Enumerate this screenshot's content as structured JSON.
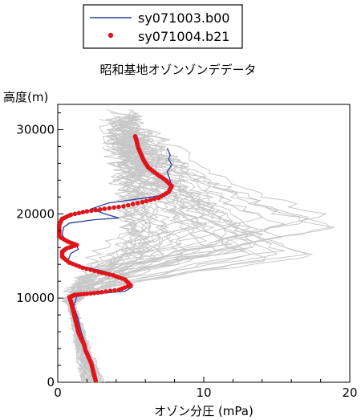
{
  "chart_data": {
    "type": "line",
    "title": "昭和基地オゾンゾンデデータ",
    "xlabel": "オゾン分圧 (mPa)",
    "ylabel": "高度(m)",
    "xlim": [
      0,
      20
    ],
    "ylim": [
      0,
      33000
    ],
    "xticks": [
      0,
      10,
      20
    ],
    "yticks": [
      0,
      10000,
      20000,
      30000
    ],
    "grid": false,
    "legend_position": "top-left",
    "series": [
      {
        "name": "sy071003.b00",
        "style": "line",
        "color": "#2b3f9e",
        "points": [
          [
            2.5,
            300
          ],
          [
            2.3,
            1500
          ],
          [
            2.1,
            3000
          ],
          [
            1.9,
            4500
          ],
          [
            1.6,
            6000
          ],
          [
            1.4,
            7500
          ],
          [
            1.1,
            9000
          ],
          [
            1.3,
            10200
          ],
          [
            2.5,
            10500
          ],
          [
            4.6,
            10800
          ],
          [
            5.1,
            11300
          ],
          [
            4.9,
            11900
          ],
          [
            4.2,
            12600
          ],
          [
            3.1,
            13200
          ],
          [
            1.6,
            13800
          ],
          [
            0.7,
            14500
          ],
          [
            0.9,
            15300
          ],
          [
            1.4,
            15800
          ],
          [
            1.3,
            16200
          ],
          [
            0.5,
            16800
          ],
          [
            0.3,
            17600
          ],
          [
            0.4,
            18400
          ],
          [
            0.8,
            18900
          ],
          [
            2.5,
            19300
          ],
          [
            4.2,
            19500
          ],
          [
            3.2,
            20000
          ],
          [
            2.3,
            20600
          ],
          [
            3.5,
            21300
          ],
          [
            5.2,
            21700
          ],
          [
            7.2,
            22200
          ],
          [
            7.8,
            23200
          ],
          [
            7.7,
            24000
          ],
          [
            7.5,
            25000
          ],
          [
            7.8,
            25800
          ],
          [
            7.6,
            26500
          ],
          [
            7.7,
            27000
          ],
          [
            7.5,
            27800
          ]
        ]
      },
      {
        "name": "sy071004.b21",
        "style": "markers",
        "color": "#e0141a",
        "points": [
          [
            2.6,
            200
          ],
          [
            2.5,
            800
          ],
          [
            2.4,
            1500
          ],
          [
            2.3,
            2200
          ],
          [
            2.1,
            3000
          ],
          [
            1.9,
            3800
          ],
          [
            1.8,
            4500
          ],
          [
            1.6,
            5200
          ],
          [
            1.4,
            6000
          ],
          [
            1.3,
            6800
          ],
          [
            1.2,
            7500
          ],
          [
            1.1,
            8200
          ],
          [
            1.0,
            8900
          ],
          [
            0.9,
            9600
          ],
          [
            0.8,
            10100
          ],
          [
            1.2,
            10400
          ],
          [
            2.0,
            10500
          ],
          [
            3.0,
            10700
          ],
          [
            4.2,
            11000
          ],
          [
            5.0,
            11500
          ],
          [
            4.6,
            12200
          ],
          [
            3.8,
            12700
          ],
          [
            2.8,
            13100
          ],
          [
            1.7,
            13600
          ],
          [
            0.8,
            14200
          ],
          [
            0.3,
            14900
          ],
          [
            0.3,
            15500
          ],
          [
            0.6,
            15900
          ],
          [
            1.3,
            16300
          ],
          [
            0.7,
            16700
          ],
          [
            0.1,
            17300
          ],
          [
            0.1,
            18000
          ],
          [
            0.1,
            18700
          ],
          [
            0.3,
            19400
          ],
          [
            0.9,
            19900
          ],
          [
            2.0,
            20300
          ],
          [
            3.2,
            20600
          ],
          [
            4.5,
            20900
          ],
          [
            5.8,
            21400
          ],
          [
            6.9,
            21900
          ],
          [
            7.6,
            22600
          ],
          [
            7.8,
            23300
          ],
          [
            7.4,
            24000
          ],
          [
            6.8,
            24700
          ],
          [
            6.2,
            25500
          ],
          [
            5.9,
            26300
          ],
          [
            5.7,
            27100
          ],
          [
            5.5,
            27900
          ],
          [
            5.4,
            28700
          ],
          [
            5.3,
            29200
          ]
        ]
      }
    ],
    "background_profiles": {
      "name": "",
      "color": "#c8c8c8",
      "count": 40,
      "note_peak_range_mPa": [
        4,
        19.5
      ]
    }
  }
}
